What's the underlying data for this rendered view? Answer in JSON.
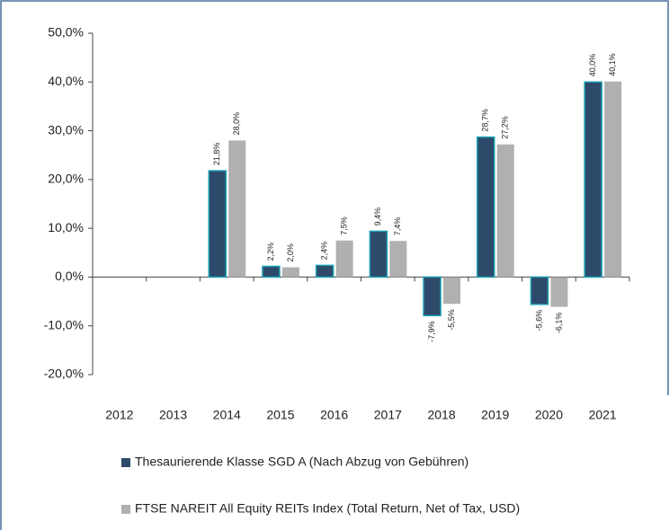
{
  "chart_data": {
    "type": "bar",
    "categories": [
      "2012",
      "2013",
      "2014",
      "2015",
      "2016",
      "2017",
      "2018",
      "2019",
      "2020",
      "2021"
    ],
    "series": [
      {
        "name": "Thesaurierende Klasse SGD A (Nach Abzug von Gebühren)",
        "color": "#2e4a6b",
        "edge": "#1aa0b0",
        "values": [
          null,
          null,
          21.8,
          2.2,
          2.4,
          9.4,
          -7.9,
          28.7,
          -5.6,
          40.0
        ],
        "value_labels": [
          null,
          null,
          "21,8%",
          "2,2%",
          "2,4%",
          "9,4%",
          "-7,9%",
          "28,7%",
          "-5,6%",
          "40,0%"
        ]
      },
      {
        "name": "FTSE NAREIT All Equity REITs Index (Total Return, Net of Tax, USD)",
        "color": "#b0b0b0",
        "values": [
          null,
          null,
          28.0,
          2.0,
          7.5,
          7.4,
          -5.5,
          27.2,
          -6.1,
          40.1
        ],
        "value_labels": [
          null,
          null,
          "28,0%",
          "2,0%",
          "7,5%",
          "7,4%",
          "-5,5%",
          "27,2%",
          "-6,1%",
          "40,1%"
        ]
      }
    ],
    "ylim": [
      -20,
      50
    ],
    "yticks": [
      {
        "value": -20,
        "label": "-20,0%"
      },
      {
        "value": -10,
        "label": "-10,0%"
      },
      {
        "value": 0,
        "label": "0,0%"
      },
      {
        "value": 10,
        "label": "10,0%"
      },
      {
        "value": 20,
        "label": "20,0%"
      },
      {
        "value": 30,
        "label": "30,0%"
      },
      {
        "value": 40,
        "label": "40,0%"
      },
      {
        "value": 50,
        "label": "50,0%"
      }
    ]
  }
}
